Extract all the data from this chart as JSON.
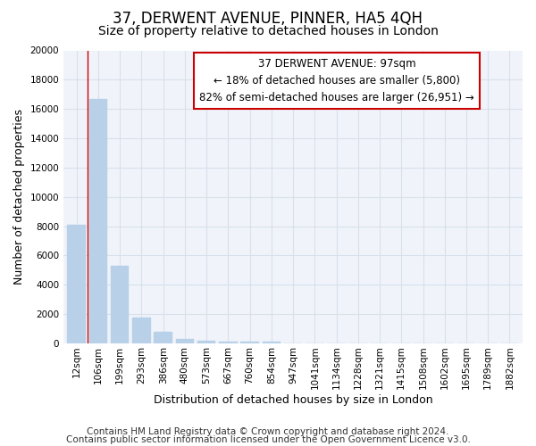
{
  "title": "37, DERWENT AVENUE, PINNER, HA5 4QH",
  "subtitle": "Size of property relative to detached houses in London",
  "xlabel": "Distribution of detached houses by size in London",
  "ylabel": "Number of detached properties",
  "bar_labels": [
    "12sqm",
    "106sqm",
    "199sqm",
    "293sqm",
    "386sqm",
    "480sqm",
    "573sqm",
    "667sqm",
    "760sqm",
    "854sqm",
    "947sqm",
    "1041sqm",
    "1134sqm",
    "1228sqm",
    "1321sqm",
    "1415sqm",
    "1508sqm",
    "1602sqm",
    "1695sqm",
    "1789sqm",
    "1882sqm"
  ],
  "bar_values": [
    8100,
    16700,
    5300,
    1750,
    800,
    300,
    150,
    100,
    100,
    100,
    0,
    0,
    0,
    0,
    0,
    0,
    0,
    0,
    0,
    0,
    0
  ],
  "bar_color": "#b8d0e8",
  "bar_edge_color": "#b8d0e8",
  "vline_color": "#cc0000",
  "vline_x": 0.5,
  "annotation_line1": "37 DERWENT AVENUE: 97sqm",
  "annotation_line2": "← 18% of detached houses are smaller (5,800)",
  "annotation_line3": "82% of semi-detached houses are larger (26,951) →",
  "annotation_box_color": "#cc0000",
  "ylim": [
    0,
    20000
  ],
  "yticks": [
    0,
    2000,
    4000,
    6000,
    8000,
    10000,
    12000,
    14000,
    16000,
    18000,
    20000
  ],
  "footer1": "Contains HM Land Registry data © Crown copyright and database right 2024.",
  "footer2": "Contains public sector information licensed under the Open Government Licence v3.0.",
  "bg_color": "#ffffff",
  "plot_bg_color": "#f0f4fa",
  "grid_color": "#d8e0ec",
  "title_fontsize": 12,
  "subtitle_fontsize": 10,
  "axis_label_fontsize": 9,
  "tick_fontsize": 7.5,
  "footer_fontsize": 7.5,
  "annotation_fontsize": 8.5
}
